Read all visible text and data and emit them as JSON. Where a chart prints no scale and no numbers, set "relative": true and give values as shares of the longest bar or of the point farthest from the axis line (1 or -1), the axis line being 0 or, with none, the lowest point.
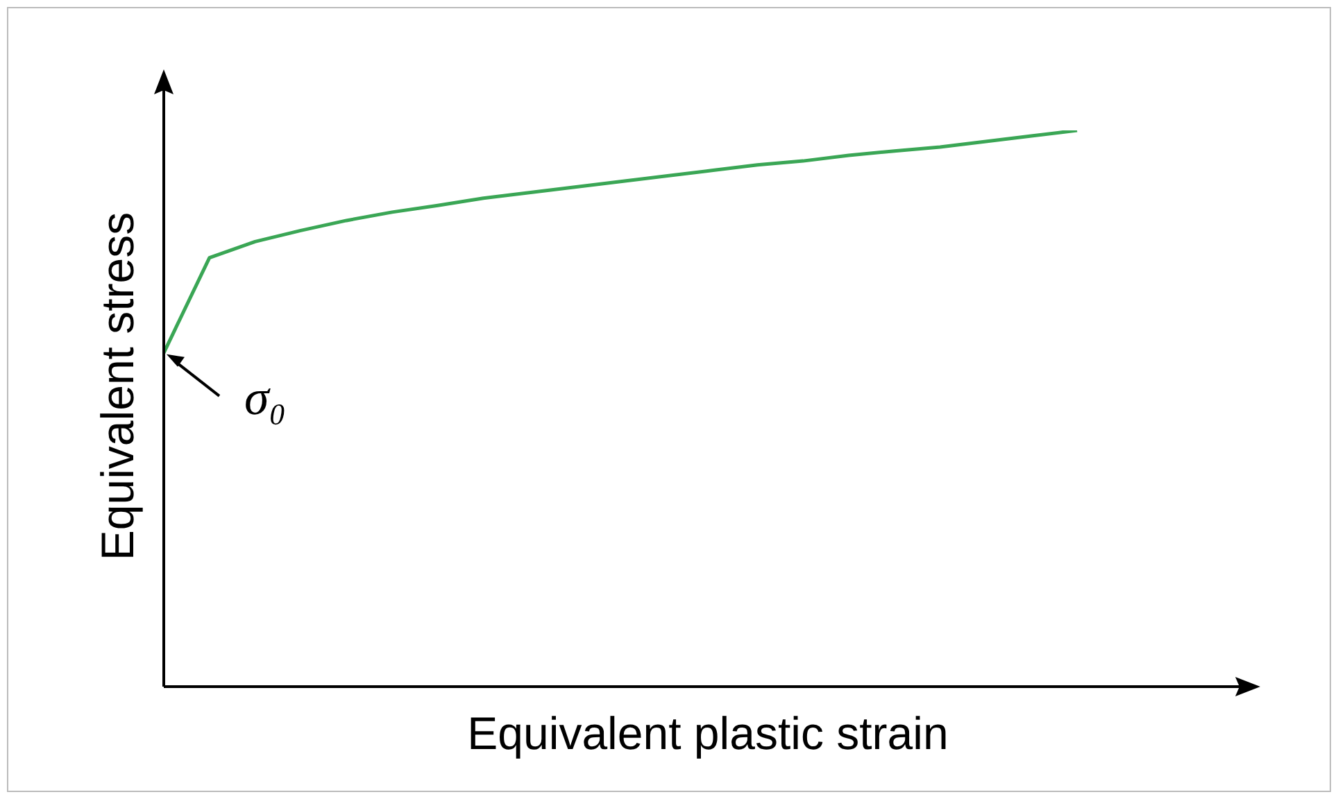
{
  "chart_data": {
    "type": "line",
    "relative": true,
    "xlabel": "Equivalent plastic strain",
    "ylabel": "Equivalent stress",
    "categories": [
      null,
      null,
      null,
      null,
      null,
      null,
      null,
      null,
      null,
      null,
      null,
      null,
      null,
      null,
      null,
      null,
      null,
      null,
      null,
      null,
      null
    ],
    "series": [
      {
        "color": "#3aa655",
        "values": [
          0.6,
          0.771,
          0.8,
          0.82,
          0.838,
          0.853,
          0.865,
          0.878,
          0.888,
          0.898,
          0.908,
          0.918,
          0.928,
          0.938,
          0.945,
          0.955,
          0.963,
          0.97,
          0.98,
          0.99,
          1
        ]
      }
    ],
    "annotations": [
      "σ₀"
    ]
  }
}
